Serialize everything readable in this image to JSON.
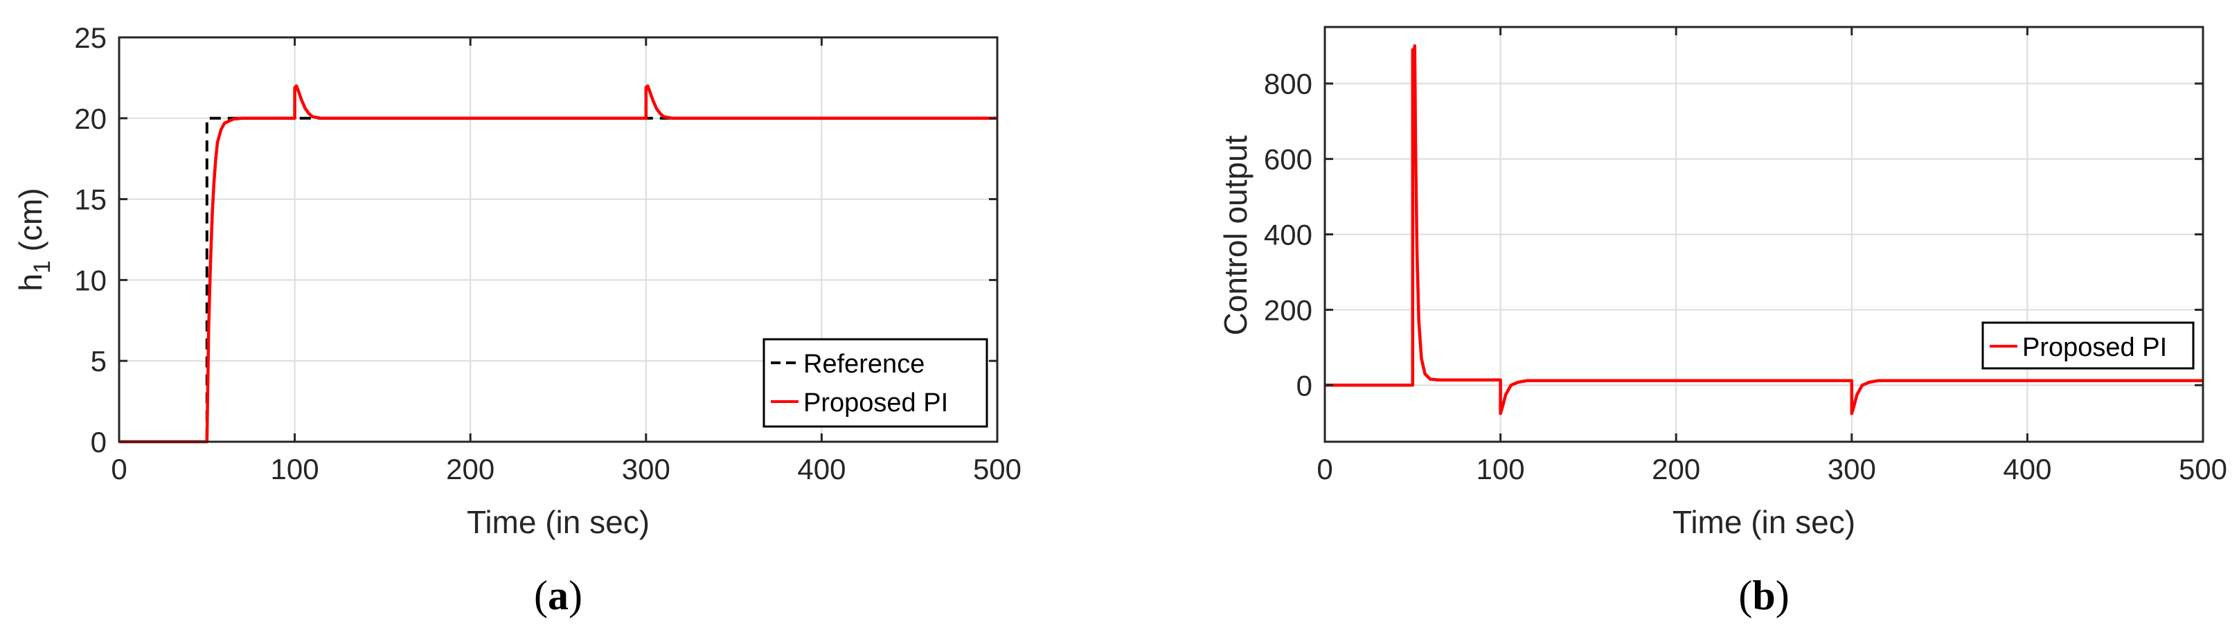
{
  "chart_data": [
    {
      "type": "line",
      "panel_label": {
        "open": "(",
        "letter": "a",
        "close": ")"
      },
      "ylabel": {
        "main": "h",
        "sub": "1",
        "unit": " (cm)"
      },
      "xlabel": "Time (in sec)",
      "xlim": [
        0,
        500
      ],
      "ylim": [
        0,
        25
      ],
      "xticks": [
        0,
        100,
        200,
        300,
        400,
        500
      ],
      "yticks": [
        0,
        5,
        10,
        15,
        20,
        25
      ],
      "grid": true,
      "legend_position": "bottom-right",
      "series": [
        {
          "name": "Reference",
          "color": "#000000",
          "style": "dashed",
          "x": [
            0,
            50,
            50,
            500
          ],
          "y": [
            0,
            0,
            20,
            20
          ]
        },
        {
          "name": "Proposed PI",
          "color": "#ff0000",
          "style": "solid",
          "x": [
            0,
            50,
            51,
            52,
            53,
            54,
            55,
            56,
            58,
            60,
            65,
            70,
            100,
            100,
            101,
            102,
            104,
            106,
            108,
            110,
            115,
            300,
            300,
            301,
            302,
            304,
            306,
            308,
            310,
            315,
            500
          ],
          "y": [
            0,
            0,
            7,
            11,
            14,
            16,
            17.5,
            18.5,
            19.3,
            19.7,
            19.95,
            20,
            20,
            21.9,
            22.0,
            21.7,
            21.1,
            20.6,
            20.3,
            20.1,
            20,
            20,
            21.9,
            22.0,
            21.7,
            21.1,
            20.6,
            20.3,
            20.1,
            20,
            20
          ]
        }
      ]
    },
    {
      "type": "line",
      "panel_label": {
        "open": "(",
        "letter": "b",
        "close": ")"
      },
      "ylabel": "Control output",
      "xlabel": "Time (in sec)",
      "xlim": [
        0,
        500
      ],
      "ylim": [
        -150,
        950
      ],
      "xticks": [
        0,
        100,
        200,
        300,
        400,
        500
      ],
      "yticks": [
        0,
        200,
        400,
        600,
        800
      ],
      "grid": true,
      "legend_position": "right",
      "series": [
        {
          "name": "Proposed PI",
          "color": "#ff0000",
          "style": "solid",
          "x": [
            0,
            50,
            50,
            50.6,
            51.2,
            51.7,
            52.5,
            53.5,
            55,
            57,
            60,
            65,
            100,
            100,
            101,
            103,
            106,
            110,
            115,
            300,
            300,
            301,
            303,
            306,
            310,
            315,
            500
          ],
          "y": [
            0,
            0,
            890,
            880,
            900,
            620,
            350,
            170,
            70,
            30,
            16,
            14,
            14,
            -75,
            -60,
            -25,
            0,
            8,
            12,
            12,
            -75,
            -60,
            -25,
            0,
            8,
            12,
            12
          ]
        }
      ]
    }
  ]
}
